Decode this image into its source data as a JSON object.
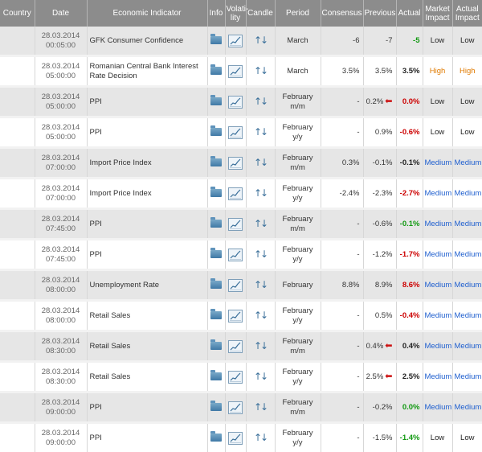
{
  "headers": {
    "country": "Country",
    "date": "Date",
    "indicator": "Economic Indicator",
    "info": "Info",
    "volatility_1": "Volati-",
    "volatility_2": "lity",
    "candle": "Candle",
    "period": "Period",
    "consensus": "Consensus",
    "previous": "Previous",
    "actual": "Actual",
    "market_impact_1": "Market",
    "market_impact_2": "Impact",
    "actual_impact_1": "Actual",
    "actual_impact_2": "Impact"
  },
  "icons": {
    "info": "folder-icon",
    "volatility": "chart-icon",
    "candle": "candle-arrows-icon",
    "revised": "red-left-arrow-icon"
  },
  "colors": {
    "negative": "#cc0000",
    "positive": "#119911",
    "medium": "#1f5fcf",
    "high": "#e07a00"
  },
  "rows": [
    {
      "date": "28.03.2014",
      "time": "00:05:00",
      "indicator": "GFK Consumer Confidence",
      "indicator2": "",
      "period": "March",
      "period2": "",
      "consensus": "-6",
      "previous": "-7",
      "revised": false,
      "actual": "-5",
      "actual_color": "pos",
      "market_impact": "Low",
      "market_class": "low",
      "actual_impact": "Low",
      "actual_class": "low"
    },
    {
      "date": "28.03.2014",
      "time": "05:00:00",
      "indicator": "Romanian Central Bank Interest",
      "indicator2": "Rate Decision",
      "period": "March",
      "period2": "",
      "consensus": "3.5%",
      "previous": "3.5%",
      "revised": false,
      "actual": "3.5%",
      "actual_color": "neu",
      "market_impact": "High",
      "market_class": "high",
      "actual_impact": "High",
      "actual_class": "high"
    },
    {
      "date": "28.03.2014",
      "time": "05:00:00",
      "indicator": "PPI",
      "indicator2": "",
      "period": "February",
      "period2": "m/m",
      "consensus": "-",
      "previous": "0.2%",
      "revised": true,
      "actual": "0.0%",
      "actual_color": "neg",
      "market_impact": "Low",
      "market_class": "low",
      "actual_impact": "Low",
      "actual_class": "low"
    },
    {
      "date": "28.03.2014",
      "time": "05:00:00",
      "indicator": "PPI",
      "indicator2": "",
      "period": "February",
      "period2": "y/y",
      "consensus": "-",
      "previous": "0.9%",
      "revised": false,
      "actual": "-0.6%",
      "actual_color": "neg",
      "market_impact": "Low",
      "market_class": "low",
      "actual_impact": "Low",
      "actual_class": "low"
    },
    {
      "date": "28.03.2014",
      "time": "07:00:00",
      "indicator": "Import Price Index",
      "indicator2": "",
      "period": "February",
      "period2": "m/m",
      "consensus": "0.3%",
      "previous": "-0.1%",
      "revised": false,
      "actual": "-0.1%",
      "actual_color": "neu",
      "market_impact": "Medium",
      "market_class": "medium",
      "actual_impact": "Medium",
      "actual_class": "medium"
    },
    {
      "date": "28.03.2014",
      "time": "07:00:00",
      "indicator": "Import Price Index",
      "indicator2": "",
      "period": "February",
      "period2": "y/y",
      "consensus": "-2.4%",
      "previous": "-2.3%",
      "revised": false,
      "actual": "-2.7%",
      "actual_color": "neg",
      "market_impact": "Medium",
      "market_class": "medium",
      "actual_impact": "Medium",
      "actual_class": "medium"
    },
    {
      "date": "28.03.2014",
      "time": "07:45:00",
      "indicator": "PPI",
      "indicator2": "",
      "period": "February",
      "period2": "m/m",
      "consensus": "-",
      "previous": "-0.6%",
      "revised": false,
      "actual": "-0.1%",
      "actual_color": "pos",
      "market_impact": "Medium",
      "market_class": "medium",
      "actual_impact": "Medium",
      "actual_class": "medium"
    },
    {
      "date": "28.03.2014",
      "time": "07:45:00",
      "indicator": "PPI",
      "indicator2": "",
      "period": "February",
      "period2": "y/y",
      "consensus": "-",
      "previous": "-1.2%",
      "revised": false,
      "actual": "-1.7%",
      "actual_color": "neg",
      "market_impact": "Medium",
      "market_class": "medium",
      "actual_impact": "Medium",
      "actual_class": "medium"
    },
    {
      "date": "28.03.2014",
      "time": "08:00:00",
      "indicator": "Unemployment Rate",
      "indicator2": "",
      "period": "February",
      "period2": "",
      "consensus": "8.8%",
      "previous": "8.9%",
      "revised": false,
      "actual": "8.6%",
      "actual_color": "neg",
      "market_impact": "Medium",
      "market_class": "medium",
      "actual_impact": "Medium",
      "actual_class": "medium"
    },
    {
      "date": "28.03.2014",
      "time": "08:00:00",
      "indicator": "Retail Sales",
      "indicator2": "",
      "period": "February",
      "period2": "y/y",
      "consensus": "-",
      "previous": "0.5%",
      "revised": false,
      "actual": "-0.4%",
      "actual_color": "neg",
      "market_impact": "Medium",
      "market_class": "medium",
      "actual_impact": "Medium",
      "actual_class": "medium"
    },
    {
      "date": "28.03.2014",
      "time": "08:30:00",
      "indicator": "Retail Sales",
      "indicator2": "",
      "period": "February",
      "period2": "m/m",
      "consensus": "-",
      "previous": "0.4%",
      "revised": true,
      "actual": "0.4%",
      "actual_color": "neu",
      "market_impact": "Medium",
      "market_class": "medium",
      "actual_impact": "Medium",
      "actual_class": "medium"
    },
    {
      "date": "28.03.2014",
      "time": "08:30:00",
      "indicator": "Retail Sales",
      "indicator2": "",
      "period": "February",
      "period2": "y/y",
      "consensus": "-",
      "previous": "2.5%",
      "revised": true,
      "actual": "2.5%",
      "actual_color": "neu",
      "market_impact": "Medium",
      "market_class": "medium",
      "actual_impact": "Medium",
      "actual_class": "medium"
    },
    {
      "date": "28.03.2014",
      "time": "09:00:00",
      "indicator": "PPI",
      "indicator2": "",
      "period": "February",
      "period2": "m/m",
      "consensus": "-",
      "previous": "-0.2%",
      "revised": false,
      "actual": "0.0%",
      "actual_color": "pos",
      "market_impact": "Medium",
      "market_class": "medium",
      "actual_impact": "Medium",
      "actual_class": "medium"
    },
    {
      "date": "28.03.2014",
      "time": "09:00:00",
      "indicator": "PPI",
      "indicator2": "",
      "period": "February",
      "period2": "y/y",
      "consensus": "-",
      "previous": "-1.5%",
      "revised": false,
      "actual": "-1.4%",
      "actual_color": "pos",
      "market_impact": "Low",
      "market_class": "low",
      "actual_impact": "Low",
      "actual_class": "low"
    }
  ]
}
